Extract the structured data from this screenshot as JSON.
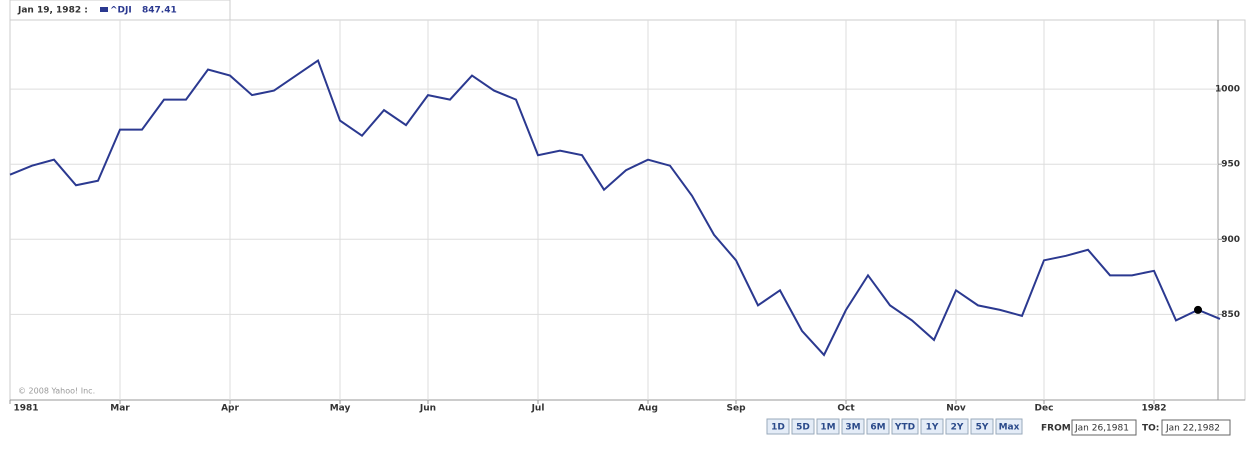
{
  "chart_data": {
    "type": "line",
    "hover": {
      "date": "Jan 19, 1982 :",
      "value": 847.41
    },
    "copyright": "© 2008 Yahoo! Inc.",
    "categories": [
      "1981",
      null,
      null,
      null,
      null,
      "Mar",
      null,
      null,
      null,
      null,
      "Apr",
      null,
      null,
      null,
      null,
      "May",
      null,
      null,
      null,
      "Jun",
      null,
      null,
      null,
      null,
      "Jul",
      null,
      null,
      null,
      null,
      "Aug",
      null,
      null,
      null,
      "Sep",
      null,
      null,
      null,
      null,
      "Oct",
      null,
      null,
      null,
      null,
      "Nov",
      null,
      null,
      null,
      "Dec",
      null,
      null,
      null,
      null,
      "1982",
      null,
      null,
      null
    ],
    "series": [
      {
        "name": "^DJI",
        "color": "#2b3990",
        "values": [
          943,
          949,
          953,
          936,
          939,
          973,
          973,
          993,
          993,
          1013,
          1009,
          996,
          999,
          1009,
          1019,
          979,
          969,
          986,
          976,
          996,
          993,
          1009,
          999,
          993,
          956,
          959,
          956,
          933,
          946,
          953,
          949,
          929,
          903,
          886,
          856,
          866,
          839,
          823,
          853,
          876,
          856,
          846,
          833,
          866,
          856,
          853,
          849,
          886,
          889,
          893,
          876,
          876,
          879,
          846,
          853,
          847
        ]
      }
    ],
    "ylim": [
      793,
      1046
    ],
    "yticks": [
      850,
      900,
      950,
      1000
    ],
    "grid": true
  },
  "controls": {
    "ranges": [
      "1D",
      "5D",
      "1M",
      "3M",
      "6M",
      "YTD",
      "1Y",
      "2Y",
      "5Y",
      "Max"
    ],
    "from_label": "FROM:",
    "from_value": "Jan 26,1981",
    "to_label": "TO:",
    "to_value": "Jan 22,1982"
  }
}
